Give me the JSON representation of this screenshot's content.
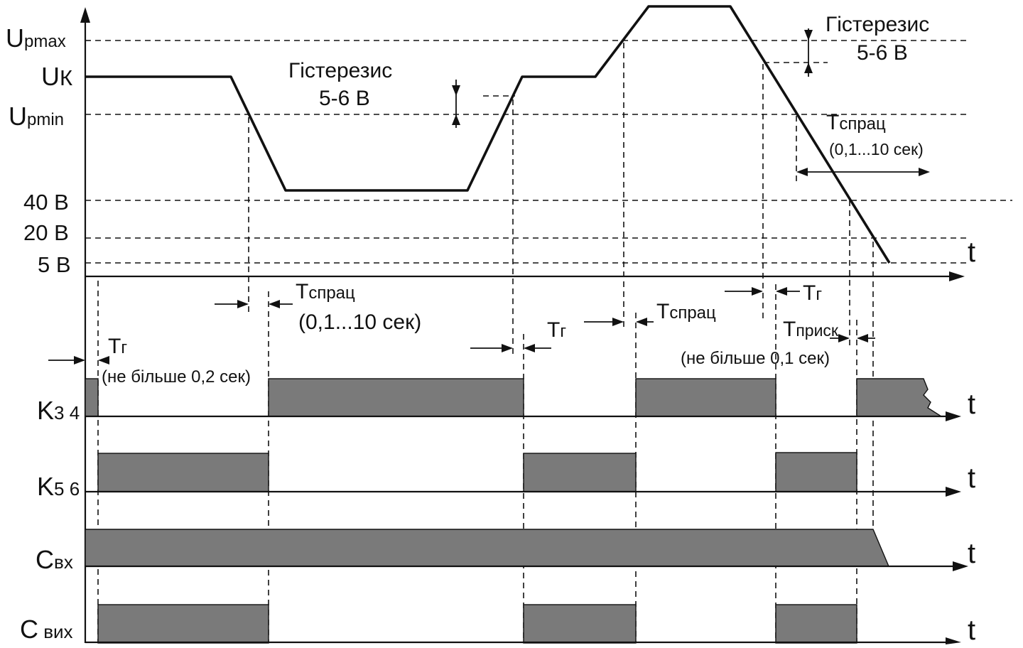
{
  "voltage_levels": {
    "upmax": {
      "main": "U",
      "sub": "pmax"
    },
    "uk": {
      "main": "U",
      "sub": "К"
    },
    "upmin": {
      "main": "U",
      "sub": "pmin"
    },
    "v40": "40 В",
    "v20": "20 В",
    "v5": "5 В"
  },
  "time_axis_label": "t",
  "hysteresis_left": {
    "title": "Гістерезис",
    "value": "5-6 В"
  },
  "hysteresis_right": {
    "title": "Гістерезис",
    "value": "5-6 В"
  },
  "annotations": {
    "t_sprac_1": {
      "main": "T",
      "sub": "спрац"
    },
    "t_sprac_1_range": "(0,1...10 сек)",
    "t_sprac_2": {
      "main": "T",
      "sub": "спрац"
    },
    "t_sprac_3": {
      "main": "T",
      "sub": "спрац"
    },
    "t_sprac_3_range": "(0,1...10 сек)",
    "t_g_1": {
      "main": "T",
      "sub": "г"
    },
    "t_g_1_note": "(не більше 0,2 сек)",
    "t_g_2": {
      "main": "T",
      "sub": "г"
    },
    "t_g_3": {
      "main": "T",
      "sub": "г"
    },
    "t_prysk": {
      "main": "T",
      "sub": "приск"
    },
    "t_prysk_note": "(не більше 0,1 сек)"
  },
  "channels": [
    {
      "main": "K",
      "sub": "3 4"
    },
    {
      "main": "K",
      "sub": "5 6"
    },
    {
      "main": "C",
      "sub": "вх"
    },
    {
      "main": "C",
      "sub": " вих"
    }
  ],
  "colors": {
    "bar_fill": "#7a7a7a",
    "line": "#111111",
    "background": "#ffffff"
  }
}
